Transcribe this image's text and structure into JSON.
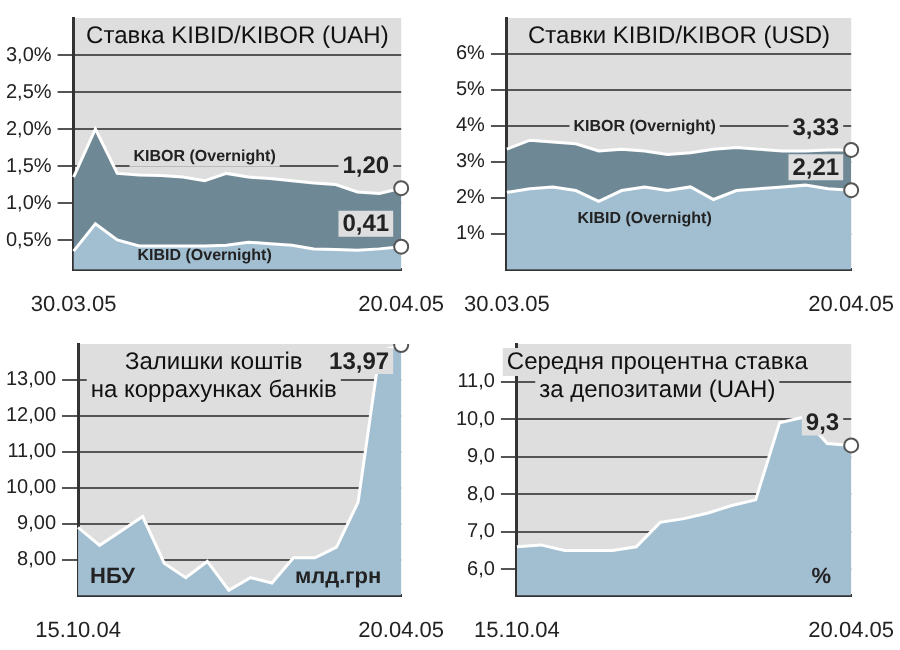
{
  "chart_data": [
    {
      "type": "area",
      "title": "Ставка KIBID/KIBOR (UAH)",
      "categories": [
        "30.03.05",
        null,
        null,
        null,
        null,
        null,
        null,
        null,
        null,
        null,
        null,
        null,
        null,
        null,
        null,
        "20.04.05"
      ],
      "ylim": [
        0.1,
        3.5
      ],
      "yticks": [
        {
          "value": 0.5,
          "label": "0,5%"
        },
        {
          "value": 1,
          "label": "1,0%"
        },
        {
          "value": 1.5,
          "label": "1,5%"
        },
        {
          "value": 2,
          "label": "2,0%"
        },
        {
          "value": 2.5,
          "label": "2,5%"
        },
        {
          "value": 3,
          "label": "3,0%"
        }
      ],
      "grid": "y",
      "legend": false,
      "series": [
        {
          "name": "KIBOR (Overnight)",
          "color": "#6f8896",
          "values": [
            1.35,
            2.0,
            1.4,
            1.38,
            1.37,
            1.35,
            1.3,
            1.4,
            1.35,
            1.33,
            1.3,
            1.27,
            1.25,
            1.15,
            1.13,
            1.2
          ],
          "value_labels": [
            null,
            null,
            null,
            null,
            null,
            null,
            null,
            null,
            null,
            null,
            null,
            null,
            null,
            null,
            null,
            "1,20"
          ]
        },
        {
          "name": "KIBID (Overnight)",
          "color": "#a2bfd2",
          "values": [
            0.35,
            0.72,
            0.5,
            0.42,
            0.42,
            0.42,
            0.42,
            0.43,
            0.47,
            0.45,
            0.43,
            0.38,
            0.37,
            0.36,
            0.38,
            0.41
          ],
          "value_labels": [
            null,
            null,
            null,
            null,
            null,
            null,
            null,
            null,
            null,
            null,
            null,
            null,
            null,
            null,
            null,
            "0,41"
          ]
        }
      ]
    },
    {
      "type": "area",
      "title": "Ставки KIBID/KIBOR (USD)",
      "categories": [
        "30.03.05",
        null,
        null,
        null,
        null,
        null,
        null,
        null,
        null,
        null,
        null,
        null,
        null,
        null,
        null,
        "20.04.05"
      ],
      "ylim": [
        0,
        7
      ],
      "yticks": [
        {
          "value": 1,
          "label": "1%"
        },
        {
          "value": 2,
          "label": "2%"
        },
        {
          "value": 3,
          "label": "3%"
        },
        {
          "value": 4,
          "label": "4%"
        },
        {
          "value": 5,
          "label": "5%"
        },
        {
          "value": 6,
          "label": "6%"
        }
      ],
      "grid": "y",
      "legend": false,
      "series": [
        {
          "name": "KIBOR (Overnight)",
          "color": "#6f8896",
          "values": [
            3.35,
            3.6,
            3.55,
            3.5,
            3.3,
            3.35,
            3.3,
            3.2,
            3.25,
            3.35,
            3.4,
            3.35,
            3.3,
            3.3,
            3.33,
            3.33
          ],
          "value_labels": [
            null,
            null,
            null,
            null,
            null,
            null,
            null,
            null,
            null,
            null,
            null,
            null,
            null,
            null,
            null,
            "3,33"
          ]
        },
        {
          "name": "KIBID (Overnight)",
          "color": "#a2bfd2",
          "values": [
            2.15,
            2.25,
            2.3,
            2.2,
            1.9,
            2.2,
            2.3,
            2.2,
            2.3,
            1.95,
            2.2,
            2.25,
            2.3,
            2.35,
            2.25,
            2.21
          ],
          "value_labels": [
            null,
            null,
            null,
            null,
            null,
            null,
            null,
            null,
            null,
            null,
            null,
            null,
            null,
            null,
            null,
            "2,21"
          ]
        }
      ]
    },
    {
      "type": "area",
      "title": "Залишки коштів\nна коррахунках банків",
      "categories": [
        "15.10.04",
        null,
        null,
        null,
        null,
        null,
        null,
        null,
        null,
        null,
        null,
        null,
        null,
        null,
        null,
        "20.04.05"
      ],
      "ylim": [
        7,
        14
      ],
      "yticks": [
        {
          "value": 8,
          "label": "8,00"
        },
        {
          "value": 9,
          "label": "9,00"
        },
        {
          "value": 10,
          "label": "10,00"
        },
        {
          "value": 11,
          "label": "11,00"
        },
        {
          "value": 12,
          "label": "12,00"
        },
        {
          "value": 13,
          "label": "13,00"
        }
      ],
      "grid": "y",
      "legend": false,
      "annotations": [
        "НБУ",
        "млд.грн"
      ],
      "series": [
        {
          "color": "#a2bfd2",
          "values": [
            8.9,
            8.4,
            8.8,
            9.2,
            7.9,
            7.5,
            7.95,
            7.15,
            7.5,
            7.35,
            8.05,
            8.05,
            8.35,
            9.6,
            13.8,
            13.97
          ],
          "value_labels": [
            null,
            null,
            null,
            null,
            null,
            null,
            null,
            null,
            null,
            null,
            null,
            null,
            null,
            null,
            null,
            "13,97"
          ]
        }
      ]
    },
    {
      "type": "area",
      "title": "Середня процентна ставка\nза депозитами (UAH)",
      "categories": [
        "15.10.04",
        null,
        null,
        null,
        null,
        null,
        null,
        null,
        null,
        null,
        null,
        null,
        null,
        null,
        "20.04.05"
      ],
      "ylim": [
        5.3,
        12
      ],
      "yticks": [
        {
          "value": 6,
          "label": "6,0"
        },
        {
          "value": 7,
          "label": "7,0"
        },
        {
          "value": 8,
          "label": "8,0"
        },
        {
          "value": 9,
          "label": "9,0"
        },
        {
          "value": 10,
          "label": "10,0"
        },
        {
          "value": 11,
          "label": "11,0"
        }
      ],
      "grid": "y",
      "legend": false,
      "annotations": [
        "%"
      ],
      "series": [
        {
          "color": "#a2bfd2",
          "values": [
            6.6,
            6.65,
            6.5,
            6.5,
            6.5,
            6.6,
            7.25,
            7.35,
            7.5,
            7.7,
            7.85,
            9.9,
            10.05,
            9.35,
            9.3
          ],
          "value_labels": [
            null,
            null,
            null,
            null,
            null,
            null,
            null,
            null,
            null,
            null,
            null,
            null,
            null,
            null,
            "9,3"
          ]
        }
      ]
    }
  ]
}
